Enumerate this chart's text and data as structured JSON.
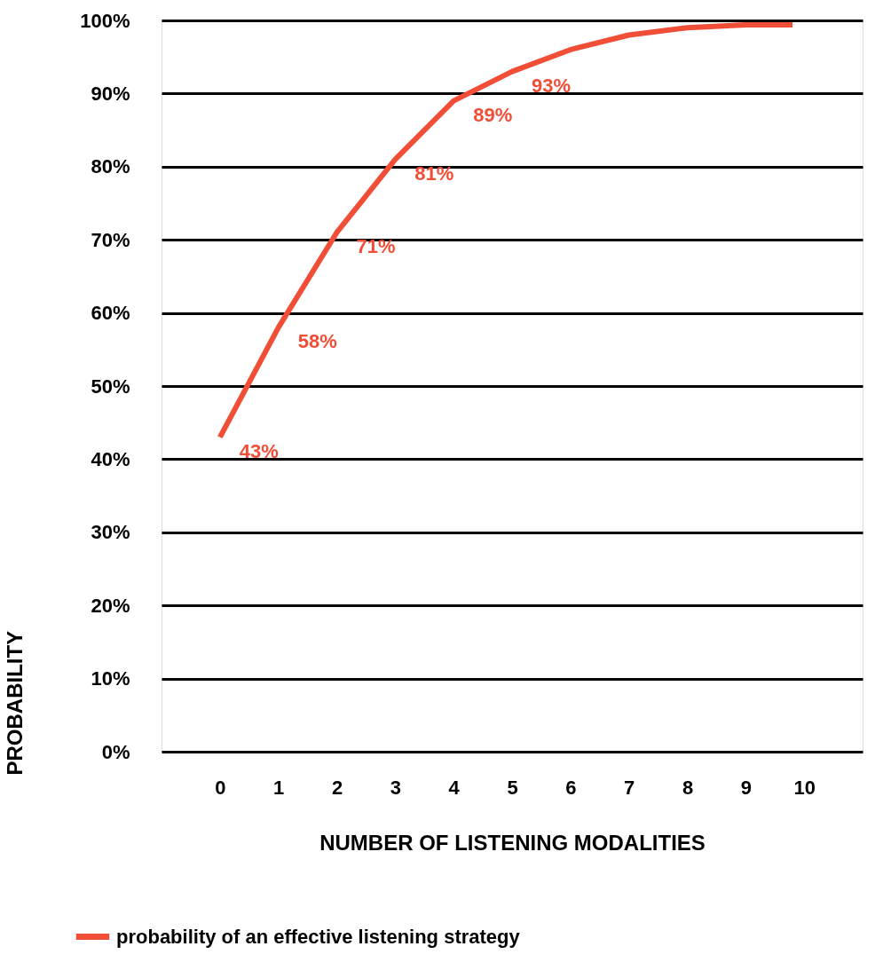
{
  "chart_data": {
    "type": "line",
    "xlabel": "NUMBER OF LISTENING MODALITIES",
    "ylabel": "PROBABILITY",
    "x": [
      0,
      1,
      2,
      3,
      4,
      5,
      6,
      7,
      8,
      9,
      9.8
    ],
    "series": [
      {
        "name": "probability of an effective listening strategy",
        "color": "#f04e37",
        "values": [
          43,
          58,
          71,
          81,
          89,
          93,
          96,
          98,
          99,
          99.4,
          99.4
        ],
        "value_labels": [
          "43%",
          "58%",
          "71%",
          "81%",
          "89%",
          "93%",
          null,
          null,
          null,
          null,
          null
        ]
      }
    ],
    "xlim": [
      -1,
      11
    ],
    "xticks": [
      0,
      1,
      2,
      3,
      4,
      5,
      6,
      7,
      8,
      9,
      10
    ],
    "ylim": [
      0,
      100
    ],
    "yticks": [
      {
        "value": 0,
        "label": "0%"
      },
      {
        "value": 10,
        "label": "10%"
      },
      {
        "value": 20,
        "label": "20%"
      },
      {
        "value": 30,
        "label": "30%"
      },
      {
        "value": 40,
        "label": "40%"
      },
      {
        "value": 50,
        "label": "50%"
      },
      {
        "value": 60,
        "label": "60%"
      },
      {
        "value": 70,
        "label": "70%"
      },
      {
        "value": 80,
        "label": "80%"
      },
      {
        "value": 90,
        "label": "90%"
      },
      {
        "value": 100,
        "label": "100%"
      }
    ],
    "grid": "y",
    "legend": "bottom left"
  }
}
